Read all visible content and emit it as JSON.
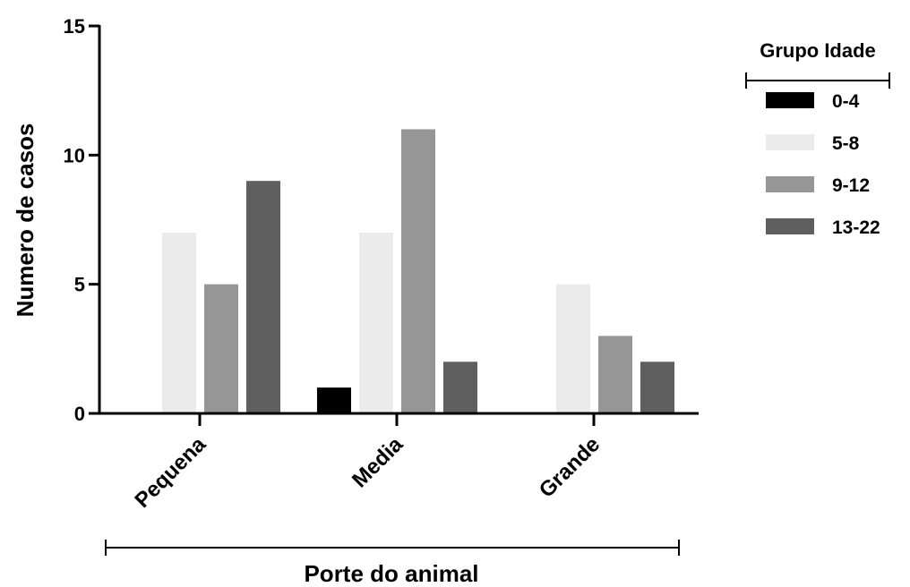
{
  "chart_data": {
    "type": "bar",
    "categories": [
      "Pequena",
      "Media",
      "Grande"
    ],
    "series": [
      {
        "name": "0-4",
        "values": [
          0,
          1,
          0
        ],
        "color": "#000000"
      },
      {
        "name": "5-8",
        "values": [
          7,
          7,
          5
        ],
        "color": "#ebebeb"
      },
      {
        "name": "9-12",
        "values": [
          5,
          11,
          3
        ],
        "color": "#969696"
      },
      {
        "name": "13-22",
        "values": [
          9,
          2,
          2
        ],
        "color": "#5f5f5f"
      }
    ],
    "ylabel": "Numero de casos",
    "xlabel": "Porte do animal",
    "ylim": [
      0,
      15
    ],
    "yticks": [
      "0",
      "5",
      "10",
      "15"
    ],
    "legend_title": "Grupo Idade",
    "legend_position": "top-right",
    "grid": false
  }
}
